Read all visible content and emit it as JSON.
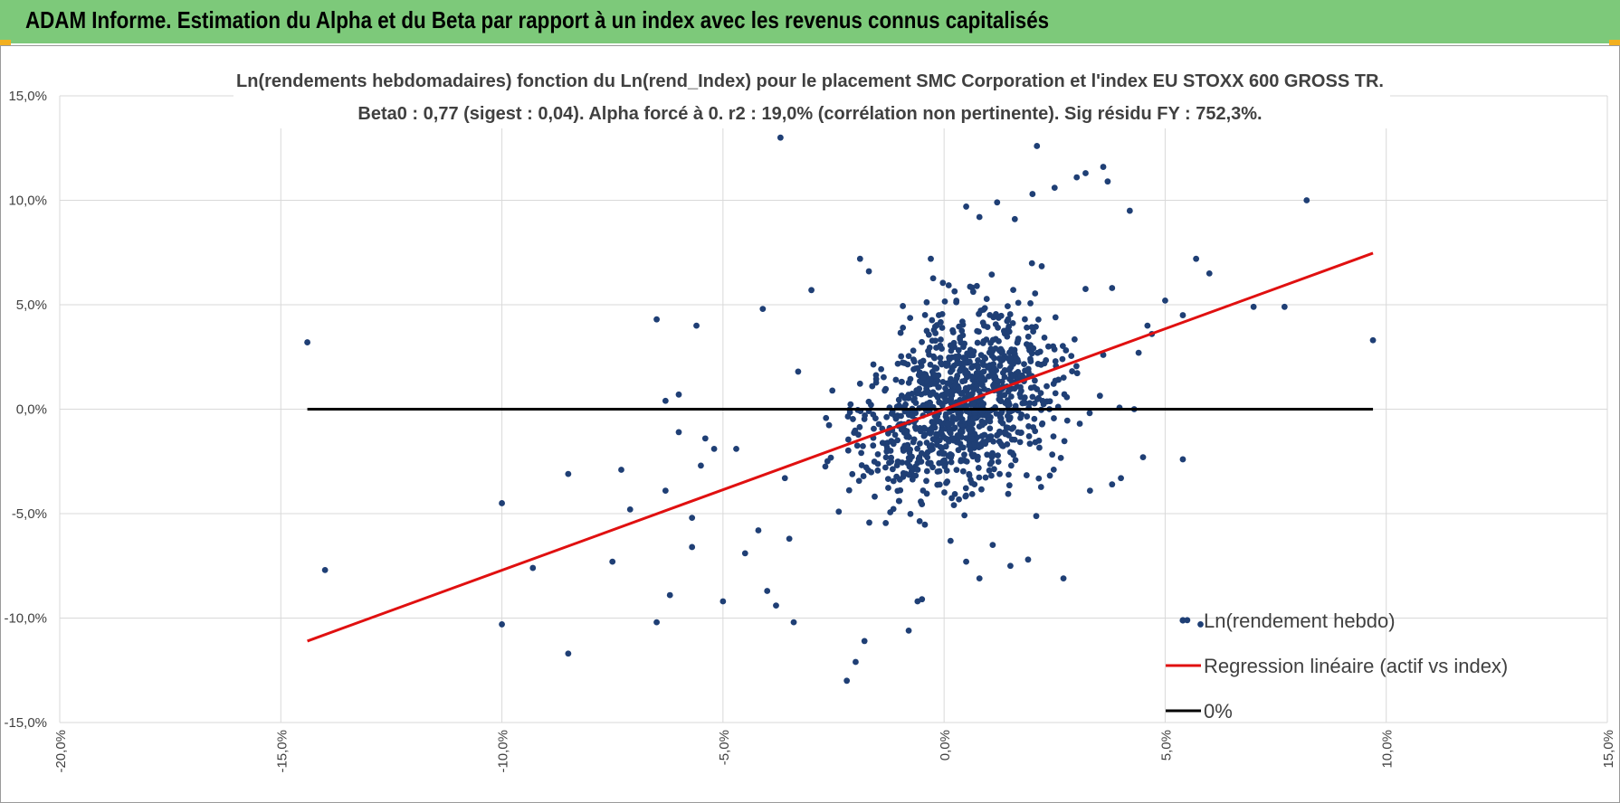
{
  "header": {
    "title": "ADAM Informe. Estimation du Alpha et du Beta par rapport à un index avec les revenus connus capitalisés"
  },
  "colors": {
    "banner": "#7dc97a",
    "scatter": "#1f3f75",
    "regression": "#e01010",
    "zero_line": "#000000",
    "grid": "#d9d9d9"
  },
  "chart_data": {
    "type": "scatter",
    "title_lines": [
      "Ln(rendements hebdomadaires) fonction du Ln(rend_Index) pour le placement SMC Corporation et l'index EU STOXX 600 GROSS TR.",
      "Beta0 : 0,77 (sigest : 0,04).  Alpha forcé à 0. r2 : 19,0% (corrélation non pertinente). Sig résidu FY : 752,3%."
    ],
    "xlim": [
      -0.2,
      0.15
    ],
    "ylim": [
      -0.15,
      0.15
    ],
    "x_ticks": [
      -0.2,
      -0.15,
      -0.1,
      -0.05,
      0.0,
      0.05,
      0.1,
      0.15
    ],
    "x_tick_labels": [
      "-20,0%",
      "-15,0%",
      "-10,0%",
      "-5,0%",
      "0,0%",
      "5,0%",
      "10,0%",
      "15,0%"
    ],
    "y_ticks": [
      0.15,
      0.1,
      0.05,
      0.0,
      -0.05,
      -0.1,
      -0.15
    ],
    "y_tick_labels": [
      "15,0%",
      "10,0%",
      "5,0%",
      "0,0%",
      "-5,0%",
      "-10,0%",
      "-15,0%"
    ],
    "grid": true,
    "legend_position": "bottom-right",
    "series": [
      {
        "name": "Ln(rendement hebdo)",
        "kind": "scatter",
        "points": [
          [
            -0.144,
            0.032
          ],
          [
            -0.14,
            -0.077
          ],
          [
            -0.1,
            -0.045
          ],
          [
            -0.1,
            -0.103
          ],
          [
            -0.093,
            -0.076
          ],
          [
            -0.085,
            -0.031
          ],
          [
            -0.085,
            -0.117
          ],
          [
            -0.075,
            -0.073
          ],
          [
            -0.073,
            -0.029
          ],
          [
            -0.071,
            -0.048
          ],
          [
            -0.065,
            0.043
          ],
          [
            -0.065,
            -0.102
          ],
          [
            -0.063,
            0.004
          ],
          [
            -0.063,
            -0.039
          ],
          [
            -0.062,
            -0.089
          ],
          [
            -0.06,
            0.007
          ],
          [
            -0.06,
            -0.011
          ],
          [
            -0.057,
            -0.052
          ],
          [
            -0.057,
            -0.066
          ],
          [
            -0.056,
            0.04
          ],
          [
            -0.055,
            -0.027
          ],
          [
            -0.054,
            -0.014
          ],
          [
            -0.052,
            -0.019
          ],
          [
            -0.05,
            -0.092
          ],
          [
            -0.047,
            -0.019
          ],
          [
            -0.045,
            -0.069
          ],
          [
            -0.042,
            -0.058
          ],
          [
            -0.041,
            0.048
          ],
          [
            -0.04,
            -0.087
          ],
          [
            -0.038,
            -0.094
          ],
          [
            -0.036,
            -0.033
          ],
          [
            -0.035,
            -0.062
          ],
          [
            -0.034,
            -0.102
          ],
          [
            -0.033,
            0.018
          ],
          [
            -0.03,
            0.057
          ],
          [
            -0.037,
            0.13
          ],
          [
            -0.019,
            0.072
          ],
          [
            -0.022,
            -0.13
          ],
          [
            -0.02,
            -0.121
          ],
          [
            -0.018,
            -0.111
          ],
          [
            -0.017,
            0.066
          ],
          [
            -0.008,
            -0.106
          ],
          [
            -0.006,
            -0.092
          ],
          [
            -0.005,
            -0.091
          ],
          [
            -0.003,
            0.072
          ],
          [
            0.005,
            0.097
          ],
          [
            0.008,
            0.092
          ],
          [
            0.012,
            0.099
          ],
          [
            0.016,
            0.091
          ],
          [
            0.02,
            0.103
          ],
          [
            0.021,
            0.126
          ],
          [
            0.025,
            0.106
          ],
          [
            0.03,
            0.111
          ],
          [
            0.032,
            0.113
          ],
          [
            0.036,
            0.116
          ],
          [
            0.037,
            0.109
          ],
          [
            0.038,
            0.058
          ],
          [
            0.042,
            0.095
          ],
          [
            0.043,
            0.0
          ],
          [
            0.045,
            -0.023
          ],
          [
            0.05,
            0.052
          ],
          [
            0.054,
            0.045
          ],
          [
            0.054,
            -0.024
          ],
          [
            0.057,
            0.072
          ],
          [
            0.058,
            -0.103
          ],
          [
            0.055,
            -0.101
          ],
          [
            0.06,
            0.065
          ],
          [
            0.07,
            0.049
          ],
          [
            0.077,
            0.049
          ],
          [
            0.082,
            0.1
          ],
          [
            0.097,
            0.033
          ],
          [
            0.027,
            -0.081
          ],
          [
            0.033,
            -0.039
          ],
          [
            0.038,
            -0.036
          ],
          [
            0.04,
            -0.033
          ],
          [
            0.015,
            -0.075
          ],
          [
            0.019,
            -0.072
          ],
          [
            0.008,
            -0.081
          ],
          [
            0.005,
            -0.073
          ],
          [
            0.011,
            -0.065
          ],
          [
            0.044,
            0.027
          ],
          [
            0.047,
            0.036
          ],
          [
            0.046,
            0.04
          ],
          [
            0.036,
            0.026
          ]
        ]
      },
      {
        "name": "Regression linéaire (actif vs index)",
        "kind": "line",
        "x": [
          -0.144,
          0.097
        ],
        "y": [
          -0.111,
          0.0747
        ]
      },
      {
        "name": "0%",
        "kind": "line",
        "x": [
          -0.144,
          0.097
        ],
        "y": [
          0.0,
          0.0
        ]
      }
    ]
  }
}
